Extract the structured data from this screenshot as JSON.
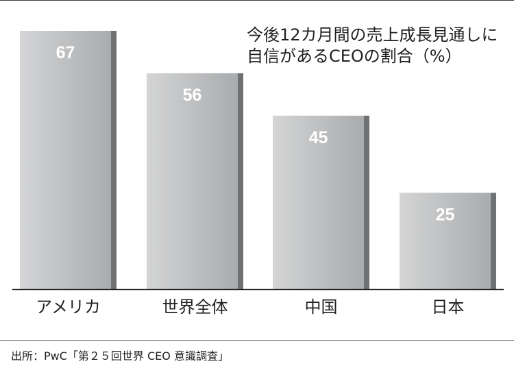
{
  "chart_data": {
    "type": "bar",
    "title": "今後12カ月間の売上成長見通しに\n自信があるCEOの割合（%）",
    "categories": [
      "アメリカ",
      "世界全体",
      "中国",
      "日本"
    ],
    "values": [
      67,
      56,
      45,
      25
    ],
    "ylim": [
      0,
      67
    ],
    "grid": false,
    "legend": "none"
  },
  "source": "出所：PwC「第２５回世界 CEO 意識調査」",
  "colors": {
    "bar_light": "#d4d5d6",
    "bar_mid": "#a9abad",
    "bar_side": "#6f7173",
    "value_label": "#ffffff",
    "axis": "#231f20"
  }
}
